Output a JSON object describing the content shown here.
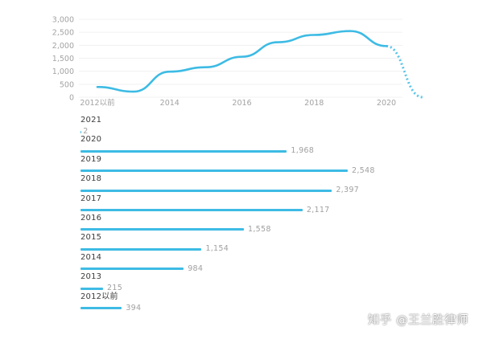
{
  "chart_data": [
    {
      "type": "line",
      "x": [
        "2012以前",
        "2013",
        "2014",
        "2015",
        "2016",
        "2017",
        "2018",
        "2019",
        "2020",
        "2021"
      ],
      "series": [
        {
          "values": [
            394,
            215,
            984,
            1154,
            1558,
            2117,
            2397,
            2548,
            1968,
            2
          ]
        }
      ],
      "dashed_segment": {
        "from": "2020",
        "to": "2021"
      },
      "x_tick_labels": [
        "2012以前",
        "2014",
        "2016",
        "2018",
        "2020"
      ],
      "y_ticks": [
        "0",
        "500",
        "1,000",
        "1,500",
        "2,000",
        "2,500",
        "3,000"
      ],
      "ylim": [
        0,
        3000
      ],
      "grid": true,
      "line_color": "#3dbbe4"
    },
    {
      "type": "bar",
      "orientation": "horizontal",
      "bar_color": "#3dbbe4",
      "xlim": [
        0,
        3000
      ],
      "items": [
        {
          "label": "2021",
          "value": 2,
          "value_label": "2"
        },
        {
          "label": "2020",
          "value": 1968,
          "value_label": "1,968"
        },
        {
          "label": "2019",
          "value": 2548,
          "value_label": "2,548"
        },
        {
          "label": "2018",
          "value": 2397,
          "value_label": "2,397"
        },
        {
          "label": "2017",
          "value": 2117,
          "value_label": "2,117"
        },
        {
          "label": "2016",
          "value": 1558,
          "value_label": "1,558"
        },
        {
          "label": "2015",
          "value": 1154,
          "value_label": "1,154"
        },
        {
          "label": "2014",
          "value": 984,
          "value_label": "984"
        },
        {
          "label": "2013",
          "value": 215,
          "value_label": "215"
        },
        {
          "label": "2012以前",
          "value": 394,
          "value_label": "394"
        }
      ]
    }
  ],
  "watermark": "知乎 @王兰胜律师"
}
